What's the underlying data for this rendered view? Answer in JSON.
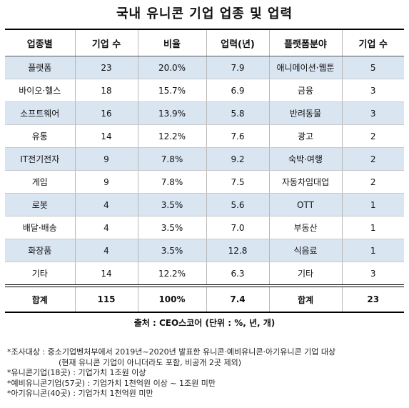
{
  "title": "국내 유니콘 기업 업종 및 업력",
  "headers": [
    "업종별",
    "기업 수",
    "비율",
    "업력(년)",
    "플랫폼분야",
    "기업 수"
  ],
  "rows": [
    [
      "플랫폼",
      "23",
      "20.0%",
      "7.9",
      "애니메이션·웹툰",
      "5"
    ],
    [
      "바이오·헬스",
      "18",
      "15.7%",
      "6.9",
      "금융",
      "3"
    ],
    [
      "소프트웨어",
      "16",
      "13.9%",
      "5.8",
      "반려동물",
      "3"
    ],
    [
      "유통",
      "14",
      "12.2%",
      "7.6",
      "광고",
      "2"
    ],
    [
      "IT전기전자",
      "9",
      "7.8%",
      "9.2",
      "숙박·여행",
      "2"
    ],
    [
      "게임",
      "9",
      "7.8%",
      "7.5",
      "자동차임대업",
      "2"
    ],
    [
      "로봇",
      "4",
      "3.5%",
      "5.6",
      "OTT",
      "1"
    ],
    [
      "배달·배송",
      "4",
      "3.5%",
      "7.0",
      "부동산",
      "1"
    ],
    [
      "화장품",
      "4",
      "3.5%",
      "12.8",
      "식음료",
      "1"
    ],
    [
      "기타",
      "14",
      "12.2%",
      "6.3",
      "기타",
      "3"
    ]
  ],
  "total": [
    "합계",
    "115",
    "100%",
    "7.4",
    "합계",
    "23"
  ],
  "source": "출처 : CEO스코어 (단위 : %, 년, 개)",
  "notes": {
    "survey_line1": "*조사대상 : 중소기업벤처부에서 2019년~2020년 발표한 유니콘·예비유니콘·아기유니콘 기업 대상",
    "survey_line2": "(현재 유니콘 기업이 아니더라도 포함, 비공개 2곳 제외)",
    "unicorn": "*유니콘기업(18곳) : 기업가치 1조원 이상",
    "pre_unicorn": "*예비유니콘기업(57곳) : 기업가치 1천억원 이상 ~ 1조원 미만",
    "baby_unicorn": "*아기유니콘(40곳) : 기업가치 1천억원 미만"
  }
}
